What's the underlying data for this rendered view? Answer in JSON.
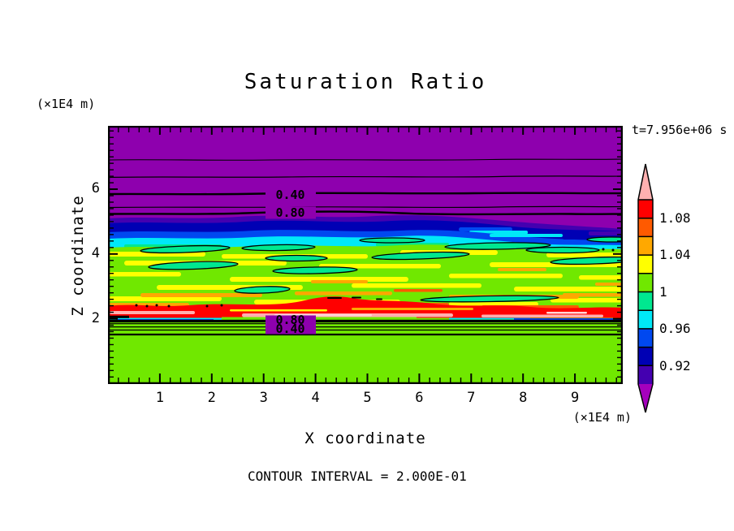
{
  "title": "Saturation Ratio",
  "time_label": "t=7.956e+06 s",
  "footer": "CONTOUR INTERVAL = 2.000E-01",
  "x_axis": {
    "label": "X coordinate",
    "unit": "(×1E4 m)",
    "tick_labels": [
      "1",
      "2",
      "3",
      "4",
      "5",
      "6",
      "7",
      "8",
      "9"
    ]
  },
  "y_axis": {
    "label": "Z coordinate",
    "unit": "(×1E4 m)",
    "tick_labels": [
      "6",
      "4",
      "2"
    ]
  },
  "colorbar": {
    "tick_labels": [
      "1.08",
      "1.04",
      "1",
      "0.96",
      "0.92"
    ],
    "segment_colors_top_to_bottom": [
      "#ff0000",
      "#ff5a00",
      "#ffa800",
      "#ffff00",
      "#70e800",
      "#00e890",
      "#00e8f8",
      "#0048f0",
      "#0000b4",
      "#4400b0"
    ],
    "above_range_color": "#ffb0b0",
    "below_range_color": "#a500bd"
  },
  "contour_labels": {
    "top_040": "0.40",
    "top_080": "0.80",
    "bottom_080": "0.80",
    "bottom_040": "0.40"
  },
  "chart_data": {
    "type": "filled-contour",
    "title": "Saturation Ratio",
    "xlabel": "X coordinate",
    "ylabel": "Z coordinate",
    "x_unit": "×1E4 m",
    "y_unit": "×1E4 m",
    "xlim": [
      0,
      9.9
    ],
    "ylim": [
      0,
      7.96
    ],
    "xticks": [
      1,
      2,
      3,
      4,
      5,
      6,
      7,
      8,
      9
    ],
    "yticks": [
      2,
      4,
      6
    ],
    "time_annotation": "t=7.956e+06 s",
    "contour_interval": 0.2,
    "labeled_line_contours": [
      0.4,
      0.8
    ],
    "line_contour_z_positions_upper": [
      6.9,
      6.4,
      5.9,
      5.5,
      5.3
    ],
    "line_contour_z_positions_lower": [
      2.0,
      1.9,
      1.8,
      1.7,
      1.5
    ],
    "colorbar": {
      "segment_boundaries": [
        0.9,
        0.92,
        0.94,
        0.96,
        0.98,
        1.0,
        1.02,
        1.04,
        1.06,
        1.08,
        1.1
      ],
      "labeled_levels": [
        1.08,
        1.04,
        1.0,
        0.96,
        0.92
      ],
      "segment_colors_top_to_bottom": [
        "#ff0000",
        "#ff5a00",
        "#ffa800",
        "#ffff00",
        "#70e800",
        "#00e890",
        "#00e8f8",
        "#0048f0",
        "#0000b4",
        "#4400b0"
      ],
      "above_1_10_color": "#ffb0b0",
      "below_0_90_color": "#a500bd",
      "background_below_color": "#8e00ae"
    },
    "field_summary": {
      "background": "saturation ratio < 0.9 (purple) for z above ~5.3e4 m and below ~1.8e4 m",
      "upper_transition": "thin line contours 0.2-0.8 between z~5.3e4 and 6.9e4 m; dark blue band (0.90-0.96) at z~4.6-5.2e4 m",
      "core_band": "z~2.2-4.6e4 m mostly 0.98-1.04 (green/yellow) with closed 0.98 lens contours (spring green) and orange streaks 1.04-1.06",
      "maximum": "red/pink > 1.08-1.10 layer near z~2.0-2.3e4 m",
      "lower_transition": "sharp gradient at z~1.9e4 m, stacked contours 0.8-0.2 below"
    }
  }
}
